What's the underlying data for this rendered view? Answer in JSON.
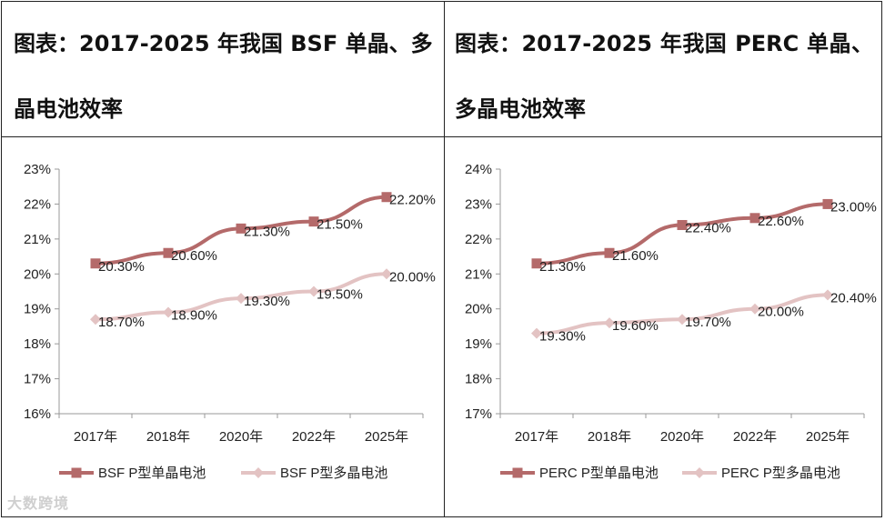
{
  "titles": {
    "left": "图表：2017-2025 年我国 BSF 单晶、多晶电池效率",
    "right": "图表：2017-2025 年我国 PERC 单晶、多晶电池效率"
  },
  "watermark": "大数跨境",
  "colors": {
    "mono": "#B46A6A",
    "poly": "#E3C3C3",
    "axis": "#999999",
    "text": "#222222"
  },
  "chart_data": [
    {
      "type": "line",
      "title": "",
      "categories": [
        "2017年",
        "2018年",
        "2020年",
        "2022年",
        "2025年"
      ],
      "ylim": [
        16,
        23
      ],
      "yticks": [
        "16%",
        "17%",
        "18%",
        "19%",
        "20%",
        "21%",
        "22%",
        "23%"
      ],
      "series": [
        {
          "name": "BSF P型单晶电池",
          "values": [
            20.3,
            20.6,
            21.3,
            21.5,
            22.2
          ],
          "labels": [
            "20.30%",
            "20.60%",
            "21.30%",
            "21.50%",
            "22.20%"
          ]
        },
        {
          "name": "BSF P型多晶电池",
          "values": [
            18.7,
            18.9,
            19.3,
            19.5,
            20.0
          ],
          "labels": [
            "18.70%",
            "18.90%",
            "19.30%",
            "19.50%",
            "20.00%"
          ]
        }
      ],
      "legend": "bottom"
    },
    {
      "type": "line",
      "title": "",
      "categories": [
        "2017年",
        "2018年",
        "2020年",
        "2022年",
        "2025年"
      ],
      "ylim": [
        17,
        24
      ],
      "yticks": [
        "17%",
        "18%",
        "19%",
        "20%",
        "21%",
        "22%",
        "23%",
        "24%"
      ],
      "series": [
        {
          "name": "PERC P型单晶电池",
          "values": [
            21.3,
            21.6,
            22.4,
            22.6,
            23.0
          ],
          "labels": [
            "21.30%",
            "21.60%",
            "22.40%",
            "22.60%",
            "23.00%"
          ]
        },
        {
          "name": "PERC P型多晶电池",
          "values": [
            19.3,
            19.6,
            19.7,
            20.0,
            20.4
          ],
          "labels": [
            "19.30%",
            "19.60%",
            "19.70%",
            "20.00%",
            "20.40%"
          ]
        }
      ],
      "legend": "bottom"
    }
  ]
}
